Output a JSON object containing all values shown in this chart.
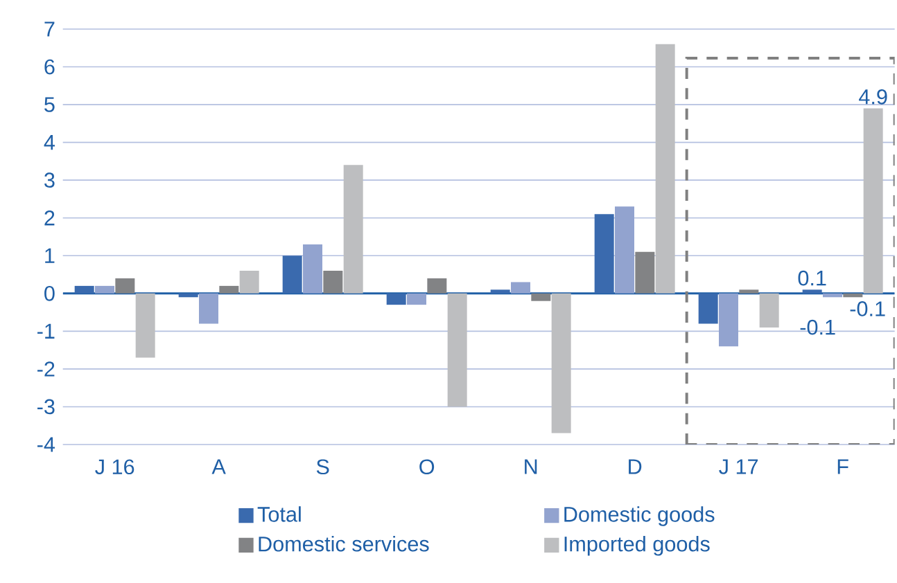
{
  "chart_data": {
    "type": "bar",
    "categories": [
      "J 16",
      "A",
      "S",
      "O",
      "N",
      "D",
      "J 17",
      "F"
    ],
    "series": [
      {
        "name": "Total",
        "color": "#3a6aae",
        "values": [
          0.2,
          -0.1,
          1.0,
          -0.3,
          0.1,
          2.1,
          -0.8,
          0.1
        ],
        "value_labels": [
          null,
          null,
          null,
          null,
          null,
          null,
          null,
          "0.1"
        ]
      },
      {
        "name": "Domestic goods",
        "color": "#92a3cf",
        "values": [
          0.2,
          -0.8,
          1.3,
          -0.3,
          0.3,
          2.3,
          -1.4,
          -0.1
        ],
        "value_labels": [
          null,
          null,
          null,
          null,
          null,
          null,
          null,
          "-0.1"
        ]
      },
      {
        "name": "Domestic services",
        "color": "#828385",
        "values": [
          0.4,
          0.2,
          0.6,
          0.4,
          -0.2,
          1.1,
          0.1,
          -0.1
        ],
        "value_labels": [
          null,
          null,
          null,
          null,
          null,
          null,
          null,
          "-0.1"
        ]
      },
      {
        "name": "Imported goods",
        "color": "#bdbec0",
        "values": [
          -1.7,
          0.6,
          3.4,
          -3.0,
          -3.7,
          6.6,
          -0.9,
          4.9
        ],
        "value_labels": [
          null,
          null,
          null,
          null,
          null,
          null,
          null,
          "4.9"
        ]
      }
    ],
    "ylim": [
      -4,
      7
    ],
    "yticks": [
      -4,
      -3,
      -2,
      -1,
      0,
      1,
      2,
      3,
      4,
      5,
      6,
      7
    ],
    "grid": "y",
    "legend": "bottom",
    "ref_lines": [
      {
        "axis": "y",
        "value": 0,
        "color": "#1f5fa6"
      }
    ]
  }
}
